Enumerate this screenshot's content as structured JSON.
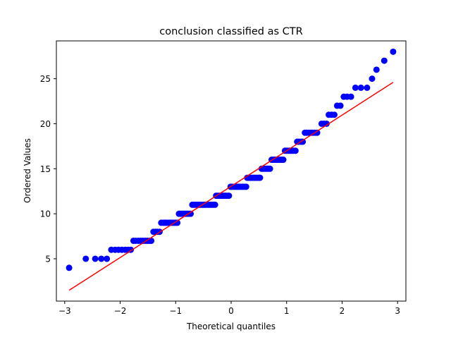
{
  "chart_data": {
    "type": "scatter",
    "title": "conclusion classified as CTR",
    "xlabel": "Theoretical quantiles",
    "ylabel": "Ordered Values",
    "xlim": [
      -3.15,
      3.15
    ],
    "ylim": [
      0.3,
      29.2
    ],
    "xticks": [
      -3,
      -2,
      -1,
      0,
      1,
      2,
      3
    ],
    "xtick_labels": [
      "−3",
      "−2",
      "−1",
      "0",
      "1",
      "2",
      "3"
    ],
    "yticks": [
      5,
      10,
      15,
      20,
      25
    ],
    "ytick_labels": [
      "5",
      "10",
      "15",
      "20",
      "25"
    ],
    "grid": false,
    "legend": "none",
    "series": [
      {
        "marker_color": "#0000ff",
        "points": [
          [
            -2.92,
            4
          ],
          [
            -2.62,
            5
          ],
          [
            -2.45,
            5
          ],
          [
            -2.34,
            5
          ],
          [
            -2.24,
            5
          ],
          [
            -2.16,
            6
          ],
          [
            -2.09,
            6
          ],
          [
            -2.03,
            6
          ],
          [
            -1.97,
            6
          ],
          [
            -1.91,
            6
          ],
          [
            -1.86,
            6
          ],
          [
            -1.81,
            6
          ],
          [
            -1.76,
            7
          ],
          [
            -1.72,
            7
          ],
          [
            -1.67,
            7
          ],
          [
            -1.63,
            7
          ],
          [
            -1.59,
            7
          ],
          [
            -1.55,
            7
          ],
          [
            -1.51,
            7
          ],
          [
            -1.47,
            7
          ],
          [
            -1.44,
            7
          ],
          [
            -1.4,
            8
          ],
          [
            -1.36,
            8
          ],
          [
            -1.33,
            8
          ],
          [
            -1.29,
            8
          ],
          [
            -1.26,
            9
          ],
          [
            -1.22,
            9
          ],
          [
            -1.19,
            9
          ],
          [
            -1.16,
            9
          ],
          [
            -1.12,
            9
          ],
          [
            -1.09,
            9
          ],
          [
            -1.06,
            9
          ],
          [
            -1.03,
            9
          ],
          [
            -1.0,
            9
          ],
          [
            -0.97,
            9
          ],
          [
            -0.94,
            10
          ],
          [
            -0.91,
            10
          ],
          [
            -0.88,
            10
          ],
          [
            -0.85,
            10
          ],
          [
            -0.82,
            10
          ],
          [
            -0.79,
            10
          ],
          [
            -0.76,
            10
          ],
          [
            -0.73,
            10
          ],
          [
            -0.7,
            11
          ],
          [
            -0.67,
            11
          ],
          [
            -0.64,
            11
          ],
          [
            -0.61,
            11
          ],
          [
            -0.58,
            11
          ],
          [
            -0.55,
            11
          ],
          [
            -0.52,
            11
          ],
          [
            -0.5,
            11
          ],
          [
            -0.47,
            11
          ],
          [
            -0.44,
            11
          ],
          [
            -0.41,
            11
          ],
          [
            -0.38,
            11
          ],
          [
            -0.35,
            11
          ],
          [
            -0.32,
            11
          ],
          [
            -0.29,
            11
          ],
          [
            -0.27,
            12
          ],
          [
            -0.24,
            12
          ],
          [
            -0.21,
            12
          ],
          [
            -0.18,
            12
          ],
          [
            -0.15,
            12
          ],
          [
            -0.12,
            12
          ],
          [
            -0.1,
            12
          ],
          [
            -0.07,
            12
          ],
          [
            -0.04,
            12
          ],
          [
            -0.01,
            13
          ],
          [
            0.01,
            13
          ],
          [
            0.04,
            13
          ],
          [
            0.07,
            13
          ],
          [
            0.1,
            13
          ],
          [
            0.12,
            13
          ],
          [
            0.15,
            13
          ],
          [
            0.18,
            13
          ],
          [
            0.21,
            13
          ],
          [
            0.24,
            13
          ],
          [
            0.27,
            13
          ],
          [
            0.29,
            14
          ],
          [
            0.32,
            14
          ],
          [
            0.35,
            14
          ],
          [
            0.38,
            14
          ],
          [
            0.41,
            14
          ],
          [
            0.44,
            14
          ],
          [
            0.47,
            14
          ],
          [
            0.5,
            14
          ],
          [
            0.52,
            14
          ],
          [
            0.55,
            15
          ],
          [
            0.58,
            15
          ],
          [
            0.61,
            15
          ],
          [
            0.64,
            15
          ],
          [
            0.67,
            15
          ],
          [
            0.7,
            15
          ],
          [
            0.73,
            16
          ],
          [
            0.76,
            16
          ],
          [
            0.79,
            16
          ],
          [
            0.82,
            16
          ],
          [
            0.85,
            16
          ],
          [
            0.88,
            16
          ],
          [
            0.91,
            16
          ],
          [
            0.94,
            16
          ],
          [
            0.97,
            17
          ],
          [
            1.0,
            17
          ],
          [
            1.03,
            17
          ],
          [
            1.06,
            17
          ],
          [
            1.09,
            17
          ],
          [
            1.12,
            17
          ],
          [
            1.16,
            17
          ],
          [
            1.19,
            18
          ],
          [
            1.22,
            18
          ],
          [
            1.26,
            18
          ],
          [
            1.29,
            18
          ],
          [
            1.33,
            19
          ],
          [
            1.36,
            19
          ],
          [
            1.4,
            19
          ],
          [
            1.44,
            19
          ],
          [
            1.47,
            19
          ],
          [
            1.51,
            19
          ],
          [
            1.55,
            19
          ],
          [
            1.63,
            20
          ],
          [
            1.67,
            20
          ],
          [
            1.72,
            20
          ],
          [
            1.76,
            21
          ],
          [
            1.81,
            21
          ],
          [
            1.86,
            21
          ],
          [
            1.91,
            22
          ],
          [
            1.97,
            22
          ],
          [
            2.03,
            23
          ],
          [
            2.09,
            23
          ],
          [
            2.16,
            23
          ],
          [
            2.24,
            24
          ],
          [
            2.34,
            24
          ],
          [
            2.45,
            24
          ],
          [
            2.54,
            25
          ],
          [
            2.62,
            26
          ],
          [
            2.76,
            27
          ],
          [
            2.92,
            28
          ]
        ]
      }
    ],
    "fit_line": {
      "color": "#ff0000",
      "x": [
        -2.92,
        2.92
      ],
      "y": [
        1.5,
        24.6
      ]
    }
  }
}
